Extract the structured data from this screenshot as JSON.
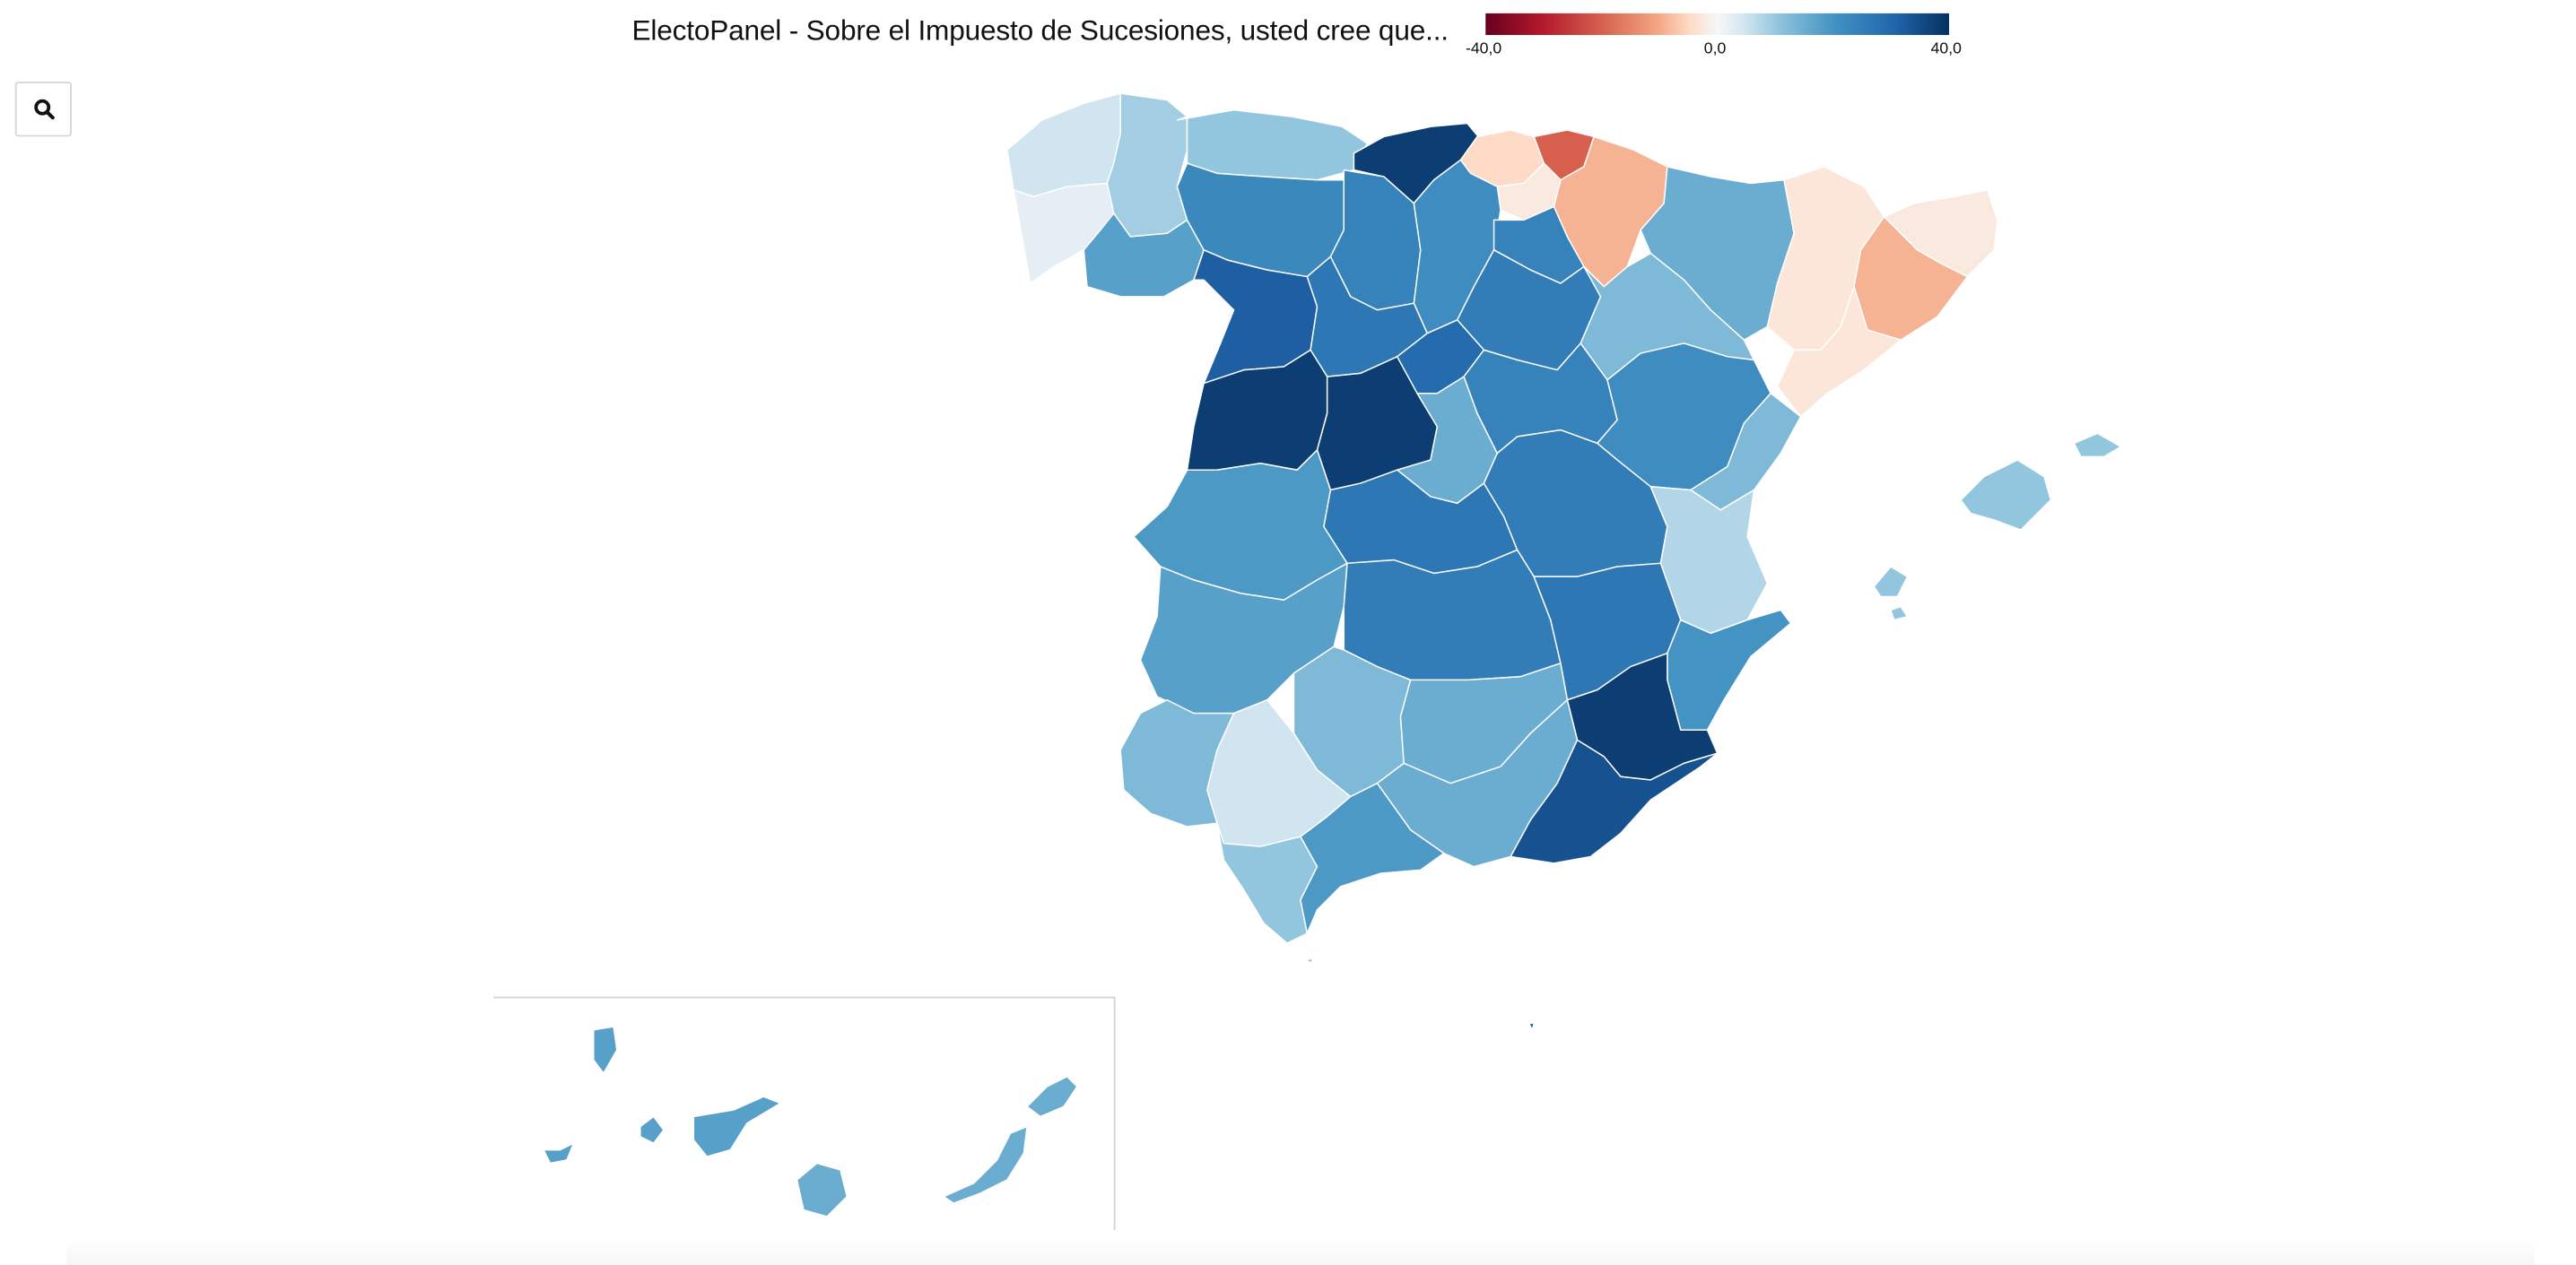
{
  "title": "ElectoPanel - Sobre el Impuesto de Sucesiones, usted cree que...",
  "legend": {
    "min_label": "-40,0",
    "mid_label": "0,0",
    "max_label": "40,0",
    "min_value": -40,
    "max_value": 40,
    "colors": [
      "#67001f",
      "#b2182b",
      "#d6604d",
      "#f4a582",
      "#fddbc7",
      "#f7f7f7",
      "#d1e5f0",
      "#92c5de",
      "#4393c3",
      "#2166ac",
      "#053061"
    ]
  },
  "toolbar": {
    "search_icon": "search-icon"
  },
  "map_regions": [
    {
      "name": "A Coruña",
      "value": 8
    },
    {
      "name": "Lugo",
      "value": 14
    },
    {
      "name": "Pontevedra",
      "value": 4
    },
    {
      "name": "Ourense",
      "value": 22
    },
    {
      "name": "Asturias",
      "value": 16
    },
    {
      "name": "Cantabria",
      "value": 38
    },
    {
      "name": "Bizkaia",
      "value": -8
    },
    {
      "name": "Gipuzkoa",
      "value": -24
    },
    {
      "name": "Araba",
      "value": -4
    },
    {
      "name": "Navarra",
      "value": -14
    },
    {
      "name": "León",
      "value": 26
    },
    {
      "name": "Palencia",
      "value": 27
    },
    {
      "name": "Burgos",
      "value": 25
    },
    {
      "name": "La Rioja",
      "value": 27
    },
    {
      "name": "Huesca",
      "value": 20
    },
    {
      "name": "Lleida",
      "value": -5
    },
    {
      "name": "Girona",
      "value": -4
    },
    {
      "name": "Barcelona",
      "value": -14
    },
    {
      "name": "Tarragona",
      "value": -5
    },
    {
      "name": "Zamora",
      "value": 33
    },
    {
      "name": "Valladolid",
      "value": 29
    },
    {
      "name": "Soria",
      "value": 28
    },
    {
      "name": "Zaragoza",
      "value": 18
    },
    {
      "name": "Salamanca",
      "value": 38
    },
    {
      "name": "Ávila",
      "value": 38
    },
    {
      "name": "Segovia",
      "value": 31
    },
    {
      "name": "Madrid",
      "value": 20
    },
    {
      "name": "Guadalajara",
      "value": 27
    },
    {
      "name": "Teruel",
      "value": 25
    },
    {
      "name": "Castellón",
      "value": 18
    },
    {
      "name": "Cáceres",
      "value": 23
    },
    {
      "name": "Toledo",
      "value": 29
    },
    {
      "name": "Cuenca",
      "value": 28
    },
    {
      "name": "Valencia",
      "value": 12
    },
    {
      "name": "Badajoz",
      "value": 22
    },
    {
      "name": "Ciudad Real",
      "value": 28
    },
    {
      "name": "Albacete",
      "value": 29
    },
    {
      "name": "Alicante",
      "value": 24
    },
    {
      "name": "Huelva",
      "value": 18
    },
    {
      "name": "Córdoba",
      "value": 18
    },
    {
      "name": "Jaén",
      "value": 20
    },
    {
      "name": "Murcia",
      "value": 38
    },
    {
      "name": "Sevilla",
      "value": 8
    },
    {
      "name": "Granada",
      "value": 20
    },
    {
      "name": "Almería",
      "value": 35
    },
    {
      "name": "Cádiz",
      "value": 16
    },
    {
      "name": "Málaga",
      "value": 23
    },
    {
      "name": "Illes Balears",
      "value": 16
    },
    {
      "name": "Santa Cruz de Tenerife",
      "value": 22
    },
    {
      "name": "Las Palmas",
      "value": 20
    }
  ]
}
